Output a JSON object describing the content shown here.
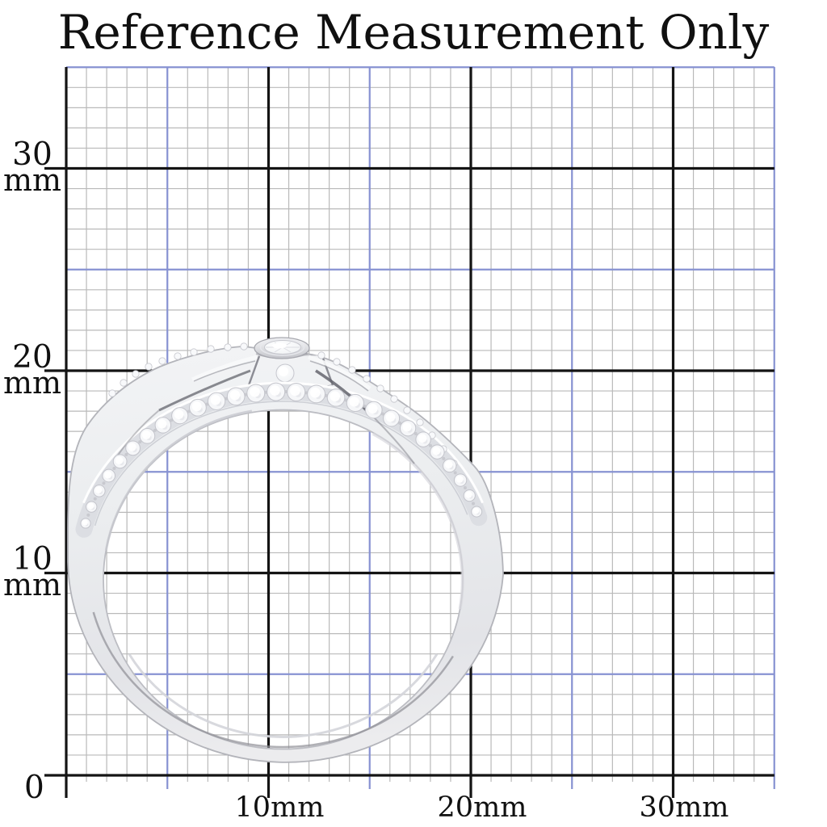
{
  "title": "Reference Measurement Only",
  "y_axis": {
    "ticks": [
      {
        "value": "30",
        "unit": "mm",
        "mm": 30
      },
      {
        "value": "20",
        "unit": "mm",
        "mm": 20
      },
      {
        "value": "10",
        "unit": "mm",
        "mm": 10
      }
    ],
    "origin_label": "0"
  },
  "x_axis": {
    "ticks": [
      {
        "label": "10mm",
        "mm": 10
      },
      {
        "label": "20mm",
        "mm": 20
      },
      {
        "label": "30mm",
        "mm": 30
      }
    ]
  },
  "grid": {
    "extent_mm": 35,
    "minor_step_mm": 1,
    "accent_step_mm": 5,
    "major_step_mm": 10,
    "minor_color": "#b9b9b9",
    "accent_color": "#8792d2",
    "major_color": "#141414",
    "background": "#ffffff"
  },
  "subject": {
    "name": "silver-ring-side-profile",
    "description": "Silver pave wedding ring photographed edge-on over a millimeter grid, bezel-set round center stone at top",
    "measured_outer_width_mm": 21.5,
    "measured_outer_height_mm": 21.6,
    "metal_color": "#eceef0",
    "stone_color": "#ffffff",
    "pave_stone_count": 27
  }
}
